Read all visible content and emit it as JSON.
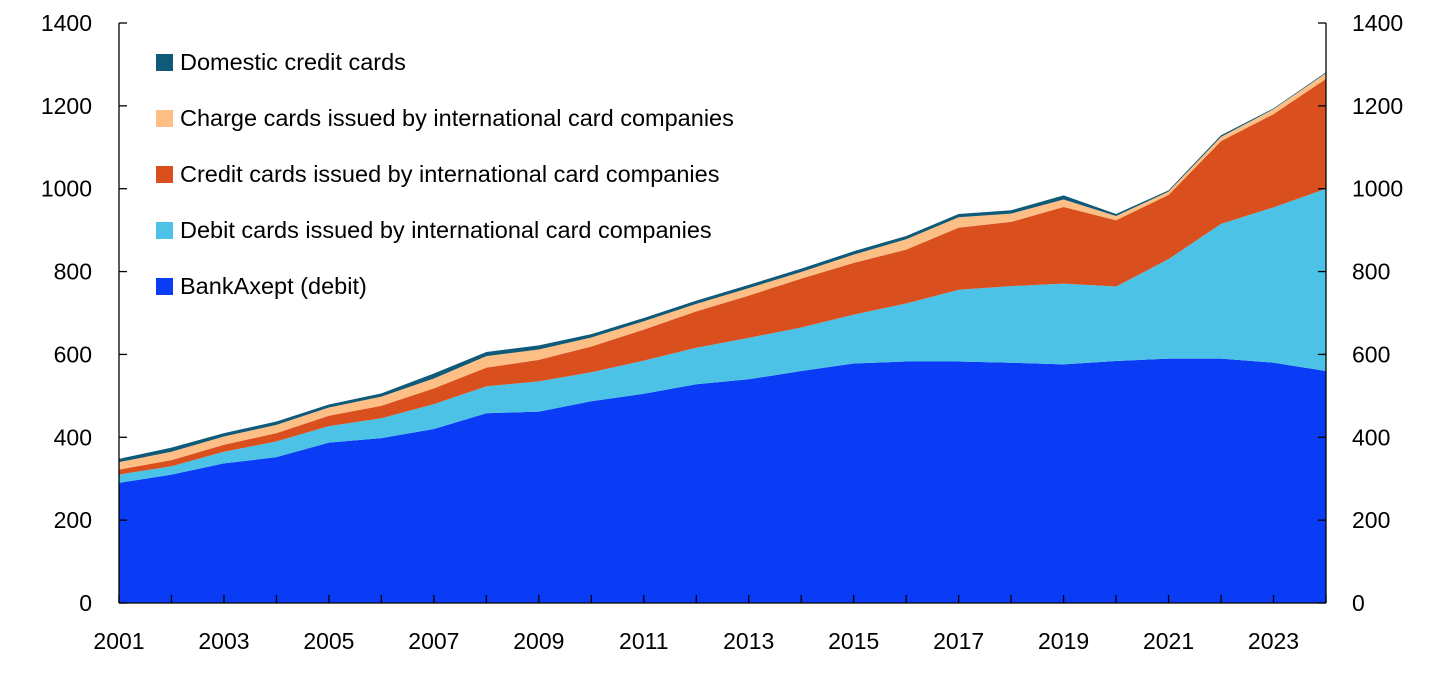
{
  "chart_data": {
    "type": "area",
    "stacked": true,
    "title": "",
    "xlabel": "",
    "ylabel": "",
    "x": [
      2001,
      2002,
      2003,
      2004,
      2005,
      2006,
      2007,
      2008,
      2009,
      2010,
      2011,
      2012,
      2013,
      2014,
      2015,
      2016,
      2017,
      2018,
      2019,
      2020,
      2021,
      2022,
      2023,
      2024
    ],
    "xlim": [
      2001,
      2024
    ],
    "ylim": [
      0,
      1400
    ],
    "x_ticks": [
      2001,
      2003,
      2005,
      2007,
      2009,
      2011,
      2013,
      2015,
      2017,
      2019,
      2021,
      2023
    ],
    "y_ticks": [
      0,
      200,
      400,
      600,
      800,
      1000,
      1200,
      1400
    ],
    "y_axis_right": true,
    "grid": false,
    "legend_position": "top-left",
    "series": [
      {
        "name": "BankAxept (debit)",
        "color": "#0a3cf5",
        "values": [
          290,
          310,
          337,
          352,
          387,
          398,
          420,
          458,
          462,
          487,
          505,
          528,
          540,
          560,
          578,
          583,
          583,
          580,
          576,
          584,
          590,
          590,
          580,
          560
        ]
      },
      {
        "name": "Debit cards issued by international card companies",
        "color": "#4cc3e6",
        "values": [
          20,
          20,
          28,
          38,
          40,
          48,
          60,
          65,
          73,
          70,
          80,
          88,
          100,
          105,
          118,
          140,
          173,
          185,
          195,
          180,
          240,
          325,
          375,
          440
        ]
      },
      {
        "name": "Credit cards issued by international card companies",
        "color": "#d9501e",
        "values": [
          12,
          15,
          17,
          20,
          25,
          30,
          38,
          45,
          52,
          62,
          75,
          88,
          102,
          118,
          125,
          130,
          150,
          155,
          185,
          160,
          155,
          200,
          225,
          265
        ]
      },
      {
        "name": "Charge cards issued by international card companies",
        "color": "#fdbf86",
        "values": [
          18,
          20,
          20,
          20,
          20,
          22,
          24,
          28,
          25,
          22,
          20,
          18,
          18,
          16,
          20,
          25,
          25,
          20,
          18,
          10,
          8,
          10,
          12,
          14
        ]
      },
      {
        "name": "Domestic credit cards",
        "color": "#0f5a78",
        "values": [
          8,
          10,
          8,
          8,
          7,
          8,
          12,
          10,
          10,
          8,
          8,
          8,
          8,
          8,
          8,
          8,
          8,
          8,
          10,
          5,
          3,
          4,
          2,
          2
        ]
      }
    ]
  }
}
